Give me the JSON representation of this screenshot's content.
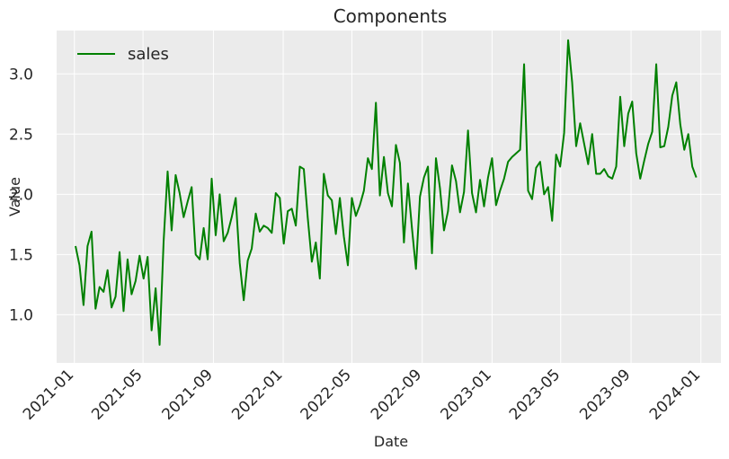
{
  "chart_data": {
    "type": "line",
    "title": "Components",
    "xlabel": "Date",
    "ylabel": "Value",
    "x_range": [
      "2020-12-01",
      "2024-02-05"
    ],
    "ylim": [
      0.6,
      3.36
    ],
    "x_ticks": [
      "2021-01",
      "2021-05",
      "2021-09",
      "2022-01",
      "2022-05",
      "2022-09",
      "2023-01",
      "2023-05",
      "2023-09",
      "2024-01"
    ],
    "y_ticks": [
      "1.0",
      "1.5",
      "2.0",
      "2.5",
      "3.0"
    ],
    "grid": true,
    "legend": "top-left",
    "colors": {
      "background": "#ebebeb",
      "grid": "#ffffff",
      "series": "#008000"
    },
    "series": [
      {
        "name": "sales",
        "x": [
          "2021-01-03",
          "2021-01-10",
          "2021-01-17",
          "2021-01-24",
          "2021-01-31",
          "2021-02-07",
          "2021-02-14",
          "2021-02-21",
          "2021-02-28",
          "2021-03-07",
          "2021-03-14",
          "2021-03-21",
          "2021-03-28",
          "2021-04-04",
          "2021-04-11",
          "2021-04-18",
          "2021-04-25",
          "2021-05-02",
          "2021-05-09",
          "2021-05-16",
          "2021-05-23",
          "2021-05-30",
          "2021-06-06",
          "2021-06-13",
          "2021-06-20",
          "2021-06-27",
          "2021-07-04",
          "2021-07-11",
          "2021-07-18",
          "2021-07-25",
          "2021-08-01",
          "2021-08-08",
          "2021-08-15",
          "2021-08-22",
          "2021-08-29",
          "2021-09-05",
          "2021-09-12",
          "2021-09-19",
          "2021-09-26",
          "2021-10-03",
          "2021-10-10",
          "2021-10-17",
          "2021-10-24",
          "2021-10-31",
          "2021-11-07",
          "2021-11-14",
          "2021-11-21",
          "2021-11-28",
          "2021-12-05",
          "2021-12-12",
          "2021-12-19",
          "2021-12-26",
          "2022-01-02",
          "2022-01-09",
          "2022-01-16",
          "2022-01-23",
          "2022-01-30",
          "2022-02-06",
          "2022-02-13",
          "2022-02-20",
          "2022-02-27",
          "2022-03-06",
          "2022-03-13",
          "2022-03-20",
          "2022-03-27",
          "2022-04-03",
          "2022-04-10",
          "2022-04-17",
          "2022-04-24",
          "2022-05-01",
          "2022-05-08",
          "2022-05-15",
          "2022-05-22",
          "2022-05-29",
          "2022-06-05",
          "2022-06-12",
          "2022-06-19",
          "2022-06-26",
          "2022-07-03",
          "2022-07-10",
          "2022-07-17",
          "2022-07-24",
          "2022-07-31",
          "2022-08-07",
          "2022-08-14",
          "2022-08-21",
          "2022-08-28",
          "2022-09-04",
          "2022-09-11",
          "2022-09-18",
          "2022-09-25",
          "2022-10-02",
          "2022-10-09",
          "2022-10-16",
          "2022-10-23",
          "2022-10-30",
          "2022-11-06",
          "2022-11-13",
          "2022-11-20",
          "2022-11-27",
          "2022-12-04",
          "2022-12-11",
          "2022-12-18",
          "2022-12-25",
          "2023-01-01",
          "2023-01-08",
          "2023-01-15",
          "2023-01-22",
          "2023-01-29",
          "2023-02-05",
          "2023-02-12",
          "2023-02-19",
          "2023-02-26",
          "2023-03-05",
          "2023-03-12",
          "2023-03-19",
          "2023-03-26",
          "2023-04-02",
          "2023-04-09",
          "2023-04-16",
          "2023-04-23",
          "2023-04-30",
          "2023-05-07",
          "2023-05-14",
          "2023-05-21",
          "2023-05-28",
          "2023-06-04",
          "2023-06-11",
          "2023-06-18",
          "2023-06-25",
          "2023-07-02",
          "2023-07-09",
          "2023-07-16",
          "2023-07-23",
          "2023-07-30",
          "2023-08-06",
          "2023-08-13",
          "2023-08-20",
          "2023-08-27",
          "2023-09-03",
          "2023-09-10",
          "2023-09-17",
          "2023-09-24",
          "2023-10-01",
          "2023-10-08",
          "2023-10-15",
          "2023-10-22",
          "2023-10-29",
          "2023-11-05",
          "2023-11-12",
          "2023-11-19",
          "2023-11-26",
          "2023-12-03",
          "2023-12-10",
          "2023-12-17",
          "2023-12-24"
        ],
        "y": [
          1.57,
          1.41,
          1.08,
          1.57,
          1.69,
          1.05,
          1.23,
          1.19,
          1.37,
          1.06,
          1.15,
          1.52,
          1.03,
          1.46,
          1.17,
          1.28,
          1.49,
          1.3,
          1.48,
          0.87,
          1.22,
          0.75,
          1.61,
          2.19,
          1.7,
          2.16,
          2.01,
          1.81,
          1.94,
          2.06,
          1.5,
          1.46,
          1.72,
          1.46,
          2.13,
          1.66,
          2.0,
          1.61,
          1.68,
          1.81,
          1.97,
          1.43,
          1.12,
          1.45,
          1.55,
          1.84,
          1.69,
          1.74,
          1.72,
          1.68,
          2.01,
          1.97,
          1.59,
          1.86,
          1.88,
          1.74,
          2.23,
          2.21,
          1.8,
          1.44,
          1.6,
          1.3,
          2.17,
          1.99,
          1.95,
          1.67,
          1.97,
          1.65,
          1.41,
          1.97,
          1.82,
          1.91,
          2.03,
          2.3,
          2.21,
          2.76,
          1.99,
          2.31,
          2.01,
          1.9,
          2.41,
          2.26,
          1.6,
          2.09,
          1.72,
          1.38,
          1.98,
          2.14,
          2.23,
          1.51,
          2.3,
          2.05,
          1.7,
          1.86,
          2.24,
          2.11,
          1.85,
          2.02,
          2.53,
          2.01,
          1.85,
          2.12,
          1.9,
          2.14,
          2.3,
          1.91,
          2.03,
          2.13,
          2.27,
          2.31,
          2.34,
          2.37,
          3.08,
          2.03,
          1.96,
          2.22,
          2.27,
          2.0,
          2.06,
          1.78,
          2.33,
          2.23,
          2.51,
          3.28,
          2.93,
          2.4,
          2.59,
          2.42,
          2.25,
          2.5,
          2.17,
          2.17,
          2.21,
          2.15,
          2.13,
          2.23,
          2.81,
          2.4,
          2.67,
          2.77,
          2.34,
          2.13,
          2.28,
          2.42,
          2.52,
          3.08,
          2.39,
          2.4,
          2.56,
          2.82,
          2.93,
          2.58,
          2.37,
          2.5,
          2.23,
          2.14
        ]
      }
    ]
  }
}
